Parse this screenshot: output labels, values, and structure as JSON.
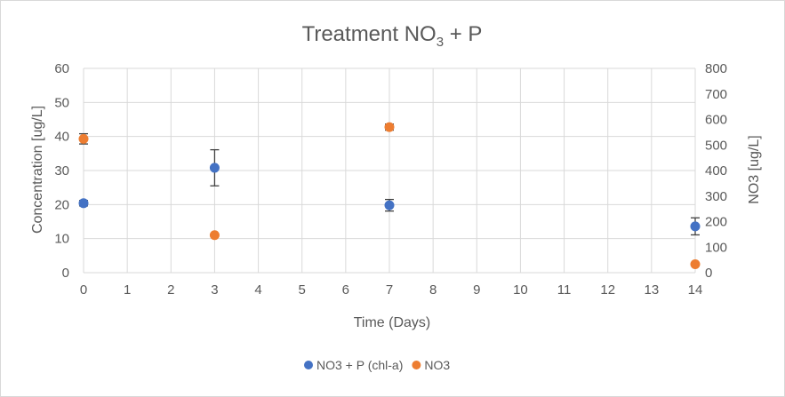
{
  "chart_data": {
    "type": "scatter",
    "title_main": "Treatment NO",
    "title_sub": "3",
    "title_rest": "  + P",
    "xlabel": "Time (Days)",
    "ylabel": "Concentration [ug/L]",
    "y2label": "NO3 [ug/L]",
    "xlim": [
      0,
      14
    ],
    "ylim": [
      0,
      60
    ],
    "y2lim": [
      0,
      800
    ],
    "x_ticks": [
      0,
      1,
      2,
      3,
      4,
      5,
      6,
      7,
      8,
      9,
      10,
      11,
      12,
      13,
      14
    ],
    "y_ticks": [
      0,
      10,
      20,
      30,
      40,
      50,
      60
    ],
    "y2_ticks": [
      0,
      100,
      200,
      300,
      400,
      500,
      600,
      700,
      800
    ],
    "grid": true,
    "legend_position": "bottom",
    "series": [
      {
        "name": "NO3 + P (chl-a)",
        "axis": "left",
        "color": "#4472c4",
        "points": [
          {
            "x": 0,
            "y": 20.4,
            "err": 0.8
          },
          {
            "x": 3,
            "y": 30.8,
            "err": 5.3
          },
          {
            "x": 7,
            "y": 19.8,
            "err": 1.7
          },
          {
            "x": 14,
            "y": 13.6,
            "err": 2.5
          }
        ]
      },
      {
        "name": "NO3",
        "axis": "right",
        "color": "#ed7d31",
        "points": [
          {
            "x": 0,
            "y": 524,
            "err": 20
          },
          {
            "x": 3,
            "y": 147,
            "err": 0
          },
          {
            "x": 7,
            "y": 570,
            "err": 12
          },
          {
            "x": 14,
            "y": 33,
            "err": 0
          }
        ]
      }
    ]
  }
}
